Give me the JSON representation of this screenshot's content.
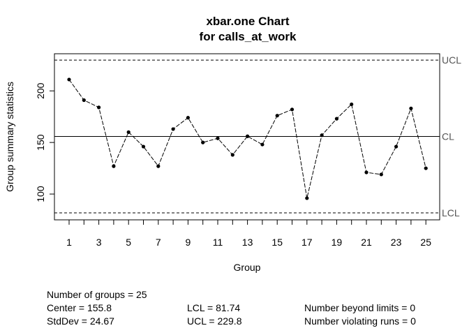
{
  "chart_data": {
    "type": "line",
    "title": "xbar.one Chart",
    "subtitle": "for calls_at_work",
    "xlabel": "Group",
    "ylabel": "Group summary statistics",
    "x": [
      1,
      2,
      3,
      4,
      5,
      6,
      7,
      8,
      9,
      10,
      11,
      12,
      13,
      14,
      15,
      16,
      17,
      18,
      19,
      20,
      21,
      22,
      23,
      24,
      25
    ],
    "values": [
      211,
      191,
      184,
      127,
      160,
      146,
      127,
      163,
      174,
      150,
      154,
      138,
      156,
      148,
      176,
      182,
      96,
      157,
      173,
      187,
      121,
      119,
      146,
      183,
      125
    ],
    "x_tick_labels": [
      "1",
      "3",
      "5",
      "7",
      "9",
      "11",
      "13",
      "15",
      "17",
      "19",
      "21",
      "23",
      "25"
    ],
    "y_ticks": [
      100,
      150,
      200
    ],
    "ylim": [
      75,
      236
    ],
    "center": 155.8,
    "lcl": 81.74,
    "ucl": 229.8,
    "limit_labels": {
      "ucl": "UCL",
      "cl": "CL",
      "lcl": "LCL"
    },
    "grid": false
  },
  "stats": {
    "groups": "Number of groups = 25",
    "center": "Center = 155.8",
    "stddev": "StdDev = 24.67",
    "lcl": "LCL = 81.74",
    "ucl": "UCL = 229.8",
    "beyond": "Number beyond limits = 0",
    "violating": "Number violating runs = 0"
  }
}
